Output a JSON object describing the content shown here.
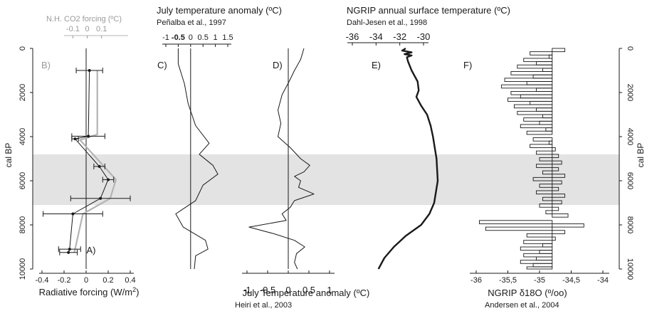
{
  "chart_data": {
    "type": "line",
    "y_axis": {
      "label": "cal BP",
      "ticks": [
        "0",
        "2000",
        "4000",
        "6000",
        "8000",
        "10000"
      ],
      "ticks_right": [
        "0",
        "2000",
        "4000",
        "6000",
        "8000",
        "10000"
      ],
      "ylim": [
        0,
        10000
      ],
      "inverted": true
    },
    "shaded_band": {
      "from": 4800,
      "to": 7100,
      "color": "#e3e3e3"
    },
    "colors": {
      "black": "#1a1a1a",
      "grey": "#b4b4b4",
      "band": "#e3e3e3"
    },
    "panels": [
      {
        "id": "A",
        "panel_label": "A)",
        "x_bottom_label": "Radiative forcing (W/m",
        "x_bottom_label_sup": "2",
        "x_bottom_label_end": ")",
        "x_bottom_ticks": [
          "-0.4",
          "-0.2",
          "0",
          "0.2",
          "0.4"
        ],
        "xlim": [
          -0.4,
          0.4
        ],
        "series": [
          {
            "values": [
              {
                "age": 1000,
                "x": 0.03,
                "err": 0.12
              },
              {
                "age": 3980,
                "x": 0.02,
                "err": 0.15
              },
              {
                "age": 4100,
                "x": -0.1,
                "err": 0.03
              },
              {
                "age": 5350,
                "x": 0.12,
                "err": 0.05
              },
              {
                "age": 5950,
                "x": 0.2,
                "err": 0.05
              },
              {
                "age": 6800,
                "x": 0.13,
                "err": 0.27
              },
              {
                "age": 7500,
                "x": -0.12,
                "err": 0.27
              },
              {
                "age": 9100,
                "x": -0.15,
                "err": 0.1
              },
              {
                "age": 9250,
                "x": -0.16,
                "err": 0.08
              }
            ]
          }
        ]
      },
      {
        "id": "B",
        "panel_label": "B)",
        "x_top_label": "N.H. CO2 forcing (ºC)",
        "x_top_ticks": [
          "-0.1",
          "0",
          "0.1"
        ],
        "xlim": [
          -0.2,
          0.3
        ],
        "series": [
          {
            "values": [
              {
                "age": 1000,
                "x": 0.07
              },
              {
                "age": 3900,
                "x": 0.07
              },
              {
                "age": 4150,
                "x": -0.05
              },
              {
                "age": 5950,
                "x": 0.2
              },
              {
                "age": 6800,
                "x": 0.16
              },
              {
                "age": 7500,
                "x": -0.03
              },
              {
                "age": 9250,
                "x": -0.09
              }
            ]
          }
        ]
      },
      {
        "id": "C",
        "panel_label": "C)",
        "x_top_label": "July temperature anomaly (ºC)",
        "x_top_sublabel": "Peñalba et al., 1997",
        "x_top_ticks": [
          "-1",
          "-0.5",
          "0",
          "0.5",
          "1",
          "1.5"
        ],
        "x_top_bold_tick": "-0.5",
        "xlim": [
          -1,
          1.5
        ],
        "series": [
          {
            "values": [
              {
                "age": 0,
                "x": -0.5
              },
              {
                "age": 700,
                "x": -0.5
              },
              {
                "age": 1600,
                "x": -0.25
              },
              {
                "age": 2500,
                "x": -0.1
              },
              {
                "age": 3500,
                "x": 0.2
              },
              {
                "age": 4300,
                "x": 0.75
              },
              {
                "age": 4800,
                "x": 0.35
              },
              {
                "age": 5300,
                "x": 0.9
              },
              {
                "age": 5700,
                "x": 1.1
              },
              {
                "age": 6200,
                "x": 0.5
              },
              {
                "age": 6900,
                "x": 0.2
              },
              {
                "age": 7500,
                "x": -0.6
              },
              {
                "age": 8100,
                "x": -0.3
              },
              {
                "age": 8700,
                "x": 0.6
              },
              {
                "age": 9100,
                "x": 0.7
              },
              {
                "age": 9400,
                "x": 0.2
              },
              {
                "age": 10000,
                "x": 0.15
              }
            ]
          }
        ]
      },
      {
        "id": "D",
        "panel_label": "D)",
        "x_bottom_label": "July Temperature anomaly (ºC)",
        "x_bottom_sublabel": "Heiri et al., 2003",
        "x_bottom_ticks": [
          "-1",
          "-0.5",
          "0",
          "0.5",
          "1"
        ],
        "xlim": [
          -1,
          1
        ],
        "series": [
          {
            "values": [
              {
                "age": 0,
                "x": 0.38
              },
              {
                "age": 500,
                "x": 0.3
              },
              {
                "age": 1000,
                "x": 0.15
              },
              {
                "age": 1500,
                "x": 0.02
              },
              {
                "age": 2100,
                "x": -0.15
              },
              {
                "age": 2800,
                "x": -0.25
              },
              {
                "age": 3400,
                "x": -0.18
              },
              {
                "age": 4000,
                "x": -0.25
              },
              {
                "age": 4500,
                "x": 0.05
              },
              {
                "age": 5000,
                "x": 0.3
              },
              {
                "age": 5300,
                "x": 0.52
              },
              {
                "age": 5600,
                "x": 0.38
              },
              {
                "age": 5800,
                "x": 0.15
              },
              {
                "age": 6000,
                "x": 0.3
              },
              {
                "age": 6300,
                "x": 0.25
              },
              {
                "age": 6600,
                "x": 0.62
              },
              {
                "age": 6900,
                "x": 0.15
              },
              {
                "age": 7200,
                "x": 0.05
              },
              {
                "age": 7500,
                "x": -0.15
              },
              {
                "age": 7800,
                "x": -0.05
              },
              {
                "age": 8100,
                "x": -0.95
              },
              {
                "age": 8400,
                "x": -0.35
              },
              {
                "age": 8700,
                "x": 0.15
              },
              {
                "age": 9000,
                "x": 0.4
              },
              {
                "age": 9300,
                "x": 0.2
              },
              {
                "age": 9700,
                "x": 0.15
              },
              {
                "age": 10000,
                "x": 0.22
              }
            ]
          }
        ]
      },
      {
        "id": "E",
        "panel_label": "E)",
        "x_top_label": "NGRIP annual surface temperature (ºC)",
        "x_top_sublabel": "Dahl-Jesen et al., 1998",
        "x_top_ticks": [
          "-36",
          "-34",
          "-32",
          "-30"
        ],
        "xlim": [
          -36,
          -30
        ],
        "series": [
          {
            "values": [
              {
                "age": 0,
                "x": -31.5
              },
              {
                "age": 100,
                "x": -31.8
              },
              {
                "age": 180,
                "x": -31.0
              },
              {
                "age": 260,
                "x": -31.6
              },
              {
                "age": 320,
                "x": -31.0
              },
              {
                "age": 400,
                "x": -31.4
              },
              {
                "age": 600,
                "x": -31.3
              },
              {
                "age": 1000,
                "x": -31.0
              },
              {
                "age": 1500,
                "x": -30.5
              },
              {
                "age": 1900,
                "x": -30.4
              },
              {
                "age": 2200,
                "x": -30.6
              },
              {
                "age": 2600,
                "x": -30.2
              },
              {
                "age": 3000,
                "x": -29.7
              },
              {
                "age": 3500,
                "x": -29.4
              },
              {
                "age": 4000,
                "x": -29.2
              },
              {
                "age": 5000,
                "x": -28.9
              },
              {
                "age": 6000,
                "x": -28.8
              },
              {
                "age": 7000,
                "x": -29.1
              },
              {
                "age": 7500,
                "x": -29.5
              },
              {
                "age": 8000,
                "x": -30.2
              },
              {
                "age": 8500,
                "x": -31.5
              },
              {
                "age": 9000,
                "x": -32.5
              },
              {
                "age": 9500,
                "x": -33.3
              },
              {
                "age": 10000,
                "x": -33.8
              }
            ]
          }
        ]
      },
      {
        "id": "F",
        "panel_label": "F)",
        "x_bottom_label": "NGRIP δ18O (º/oo)",
        "x_bottom_sublabel": "Andersen et al., 2004",
        "x_bottom_ticks": [
          "-36",
          "-35,5",
          "-35",
          "-34,5",
          "-34"
        ],
        "xlim": [
          -36,
          -34
        ],
        "series": [
          {
            "values": [
              {
                "age": 0,
                "x": -34.6
              },
              {
                "age": 150,
                "x": -35.15
              },
              {
                "age": 300,
                "x": -34.85
              },
              {
                "age": 450,
                "x": -35.25
              },
              {
                "age": 600,
                "x": -35.05
              },
              {
                "age": 750,
                "x": -35.35
              },
              {
                "age": 900,
                "x": -34.95
              },
              {
                "age": 1050,
                "x": -35.45
              },
              {
                "age": 1200,
                "x": -35.1
              },
              {
                "age": 1350,
                "x": -35.55
              },
              {
                "age": 1500,
                "x": -35.2
              },
              {
                "age": 1650,
                "x": -35.6
              },
              {
                "age": 1800,
                "x": -35.05
              },
              {
                "age": 1950,
                "x": -35.45
              },
              {
                "age": 2100,
                "x": -35.3
              },
              {
                "age": 2250,
                "x": -35.5
              },
              {
                "age": 2400,
                "x": -35.15
              },
              {
                "age": 2550,
                "x": -35.4
              },
              {
                "age": 2700,
                "x": -35.05
              },
              {
                "age": 2850,
                "x": -35.35
              },
              {
                "age": 3000,
                "x": -34.95
              },
              {
                "age": 3150,
                "x": -35.25
              },
              {
                "age": 3300,
                "x": -35.0
              },
              {
                "age": 3450,
                "x": -35.3
              },
              {
                "age": 3600,
                "x": -34.9
              },
              {
                "age": 3750,
                "x": -35.2
              },
              {
                "age": 3900,
                "x": -34.8
              },
              {
                "age": 4050,
                "x": -35.1
              },
              {
                "age": 4200,
                "x": -34.85
              },
              {
                "age": 4350,
                "x": -35.15
              },
              {
                "age": 4500,
                "x": -34.75
              },
              {
                "age": 4650,
                "x": -35.05
              },
              {
                "age": 4800,
                "x": -34.7
              },
              {
                "age": 4950,
                "x": -35.0
              },
              {
                "age": 5100,
                "x": -34.65
              },
              {
                "age": 5250,
                "x": -35.05
              },
              {
                "age": 5400,
                "x": -34.7
              },
              {
                "age": 5550,
                "x": -34.95
              },
              {
                "age": 5700,
                "x": -34.6
              },
              {
                "age": 5850,
                "x": -35.1
              },
              {
                "age": 6000,
                "x": -34.65
              },
              {
                "age": 6150,
                "x": -35.0
              },
              {
                "age": 6300,
                "x": -34.7
              },
              {
                "age": 6450,
                "x": -35.05
              },
              {
                "age": 6600,
                "x": -34.6
              },
              {
                "age": 6750,
                "x": -34.95
              },
              {
                "age": 6900,
                "x": -34.65
              },
              {
                "age": 7050,
                "x": -35.0
              },
              {
                "age": 7200,
                "x": -34.7
              },
              {
                "age": 7350,
                "x": -34.9
              },
              {
                "age": 7500,
                "x": -34.55
              },
              {
                "age": 7650,
                "x": -34.8
              },
              {
                "age": 7800,
                "x": -35.95
              },
              {
                "age": 7950,
                "x": -34.3
              },
              {
                "age": 8100,
                "x": -35.85
              },
              {
                "age": 8250,
                "x": -34.6
              },
              {
                "age": 8400,
                "x": -35.2
              },
              {
                "age": 8550,
                "x": -34.75
              },
              {
                "age": 8700,
                "x": -35.25
              },
              {
                "age": 8850,
                "x": -34.95
              },
              {
                "age": 9000,
                "x": -35.3
              },
              {
                "age": 9150,
                "x": -35.0
              },
              {
                "age": 9300,
                "x": -35.25
              },
              {
                "age": 9450,
                "x": -35.05
              },
              {
                "age": 9600,
                "x": -35.3
              },
              {
                "age": 9750,
                "x": -35.1
              },
              {
                "age": 9900,
                "x": -35.2
              },
              {
                "age": 10000,
                "x": -35.1
              }
            ]
          }
        ]
      }
    ]
  }
}
